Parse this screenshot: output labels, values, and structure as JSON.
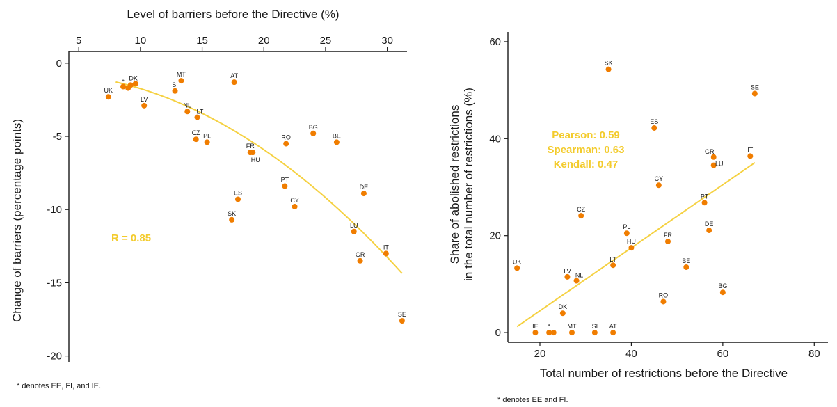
{
  "chart_data": [
    {
      "type": "scatter",
      "xlabel": "Level of barriers before the Directive (%)",
      "ylabel": "Change of barriers (percentage points)",
      "xlim": [
        4.2,
        31.6
      ],
      "ylim": [
        -20.4,
        0.8
      ],
      "xticks": [
        "5",
        "10",
        "15",
        "20",
        "25",
        "30"
      ],
      "yticks": [
        "0",
        "-5",
        "-10",
        "-15",
        "-20"
      ],
      "x_axis_position": "top",
      "points": [
        {
          "label": "UK",
          "x": 7.4,
          "y": -2.3
        },
        {
          "label": "*",
          "x": 8.6,
          "y": -1.6
        },
        {
          "label": "",
          "x": 9.0,
          "y": -1.7
        },
        {
          "label": "DK",
          "x": 9.2,
          "y": -1.5
        },
        {
          "label": "",
          "x": 9.6,
          "y": -1.4
        },
        {
          "label": "LV",
          "x": 10.3,
          "y": -2.9
        },
        {
          "label": "MT",
          "x": 13.3,
          "y": -1.2
        },
        {
          "label": "SI",
          "x": 12.8,
          "y": -1.9
        },
        {
          "label": "NL",
          "x": 13.8,
          "y": -3.3
        },
        {
          "label": "LT",
          "x": 14.6,
          "y": -3.7
        },
        {
          "label": "CZ",
          "x": 14.5,
          "y": -5.2
        },
        {
          "label": "PL",
          "x": 15.4,
          "y": -5.4
        },
        {
          "label": "AT",
          "x": 17.6,
          "y": -1.3
        },
        {
          "label": "FR",
          "x": 18.9,
          "y": -6.1
        },
        {
          "label": "HU",
          "x": 19.1,
          "y": -6.1
        },
        {
          "label": "RO",
          "x": 21.8,
          "y": -5.5
        },
        {
          "label": "BG",
          "x": 24.0,
          "y": -4.8
        },
        {
          "label": "BE",
          "x": 25.9,
          "y": -5.4
        },
        {
          "label": "ES",
          "x": 17.9,
          "y": -9.3
        },
        {
          "label": "SK",
          "x": 17.4,
          "y": -10.7
        },
        {
          "label": "PT",
          "x": 21.7,
          "y": -8.4
        },
        {
          "label": "CY",
          "x": 22.5,
          "y": -9.8
        },
        {
          "label": "DE",
          "x": 28.1,
          "y": -8.9
        },
        {
          "label": "LU",
          "x": 27.3,
          "y": -11.5
        },
        {
          "label": "GR",
          "x": 27.8,
          "y": -13.5
        },
        {
          "label": "IT",
          "x": 29.9,
          "y": -13.0
        },
        {
          "label": "SE",
          "x": 31.2,
          "y": -17.6
        }
      ],
      "fit_line": {
        "x": [
          8,
          31.2
        ],
        "coefficients": [
          -0.75,
          0.06,
          -0.0159
        ]
      },
      "annotation": "R = 0.85",
      "footnote": "* denotes EE, FI, and IE."
    },
    {
      "type": "scatter",
      "xlabel": "Total number of restrictions before the Directive",
      "ylabel": [
        "Share of abolished restrictions",
        "in the total number of restrictions (%)"
      ],
      "xlim": [
        13,
        83
      ],
      "ylim": [
        -2,
        62
      ],
      "xticks": [
        "20",
        "40",
        "60",
        "80"
      ],
      "yticks": [
        "0",
        "20",
        "40",
        "60"
      ],
      "points": [
        {
          "label": "UK",
          "x": 15,
          "y": 13.3
        },
        {
          "label": "IE",
          "x": 19,
          "y": 0
        },
        {
          "label": "*",
          "x": 22,
          "y": 0
        },
        {
          "label": "",
          "x": 23,
          "y": 0
        },
        {
          "label": "MT",
          "x": 27,
          "y": 0
        },
        {
          "label": "SI",
          "x": 32,
          "y": 0
        },
        {
          "label": "AT",
          "x": 36,
          "y": 0
        },
        {
          "label": "DK",
          "x": 25,
          "y": 4
        },
        {
          "label": "LV",
          "x": 26,
          "y": 11.5
        },
        {
          "label": "NL",
          "x": 28,
          "y": 10.7
        },
        {
          "label": "CZ",
          "x": 29,
          "y": 24.1
        },
        {
          "label": "SK",
          "x": 35,
          "y": 54.3
        },
        {
          "label": "LT",
          "x": 36,
          "y": 13.9
        },
        {
          "label": "PL",
          "x": 39,
          "y": 20.5
        },
        {
          "label": "HU",
          "x": 40,
          "y": 17.5
        },
        {
          "label": "ES",
          "x": 45,
          "y": 42.2
        },
        {
          "label": "CY",
          "x": 46,
          "y": 30.4
        },
        {
          "label": "RO",
          "x": 47,
          "y": 6.4
        },
        {
          "label": "FR",
          "x": 48,
          "y": 18.8
        },
        {
          "label": "BE",
          "x": 52,
          "y": 13.5
        },
        {
          "label": "PT",
          "x": 56,
          "y": 26.8
        },
        {
          "label": "DE",
          "x": 57,
          "y": 21.1
        },
        {
          "label": "GR",
          "x": 58,
          "y": 36.2
        },
        {
          "label": "LU",
          "x": 58,
          "y": 34.5
        },
        {
          "label": "BG",
          "x": 60,
          "y": 8.3
        },
        {
          "label": "IT",
          "x": 66,
          "y": 36.4
        },
        {
          "label": "SE",
          "x": 67,
          "y": 49.3
        }
      ],
      "fit_line": {
        "x": [
          15,
          67
        ],
        "coefficients": [
          -8.5,
          0.65,
          0
        ]
      },
      "annotation": [
        "Pearson: 0.59",
        "Spearman: 0.63",
        "Kendall: 0.47"
      ],
      "footnote": "* denotes EE and FI."
    }
  ],
  "colors": {
    "point": "#f07d00",
    "fit_line": "#f5d142",
    "annotation": "#f3cb2c",
    "axis": "#1a1a1a"
  }
}
